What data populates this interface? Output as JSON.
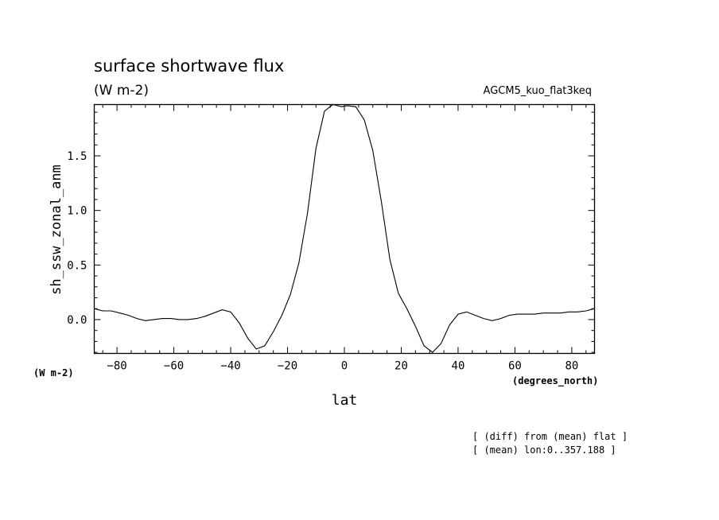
{
  "chart_data": {
    "type": "line",
    "title": "surface shortwave flux",
    "subtitle": "(W m-2)",
    "run_label": "AGCM5_kuo_flat3keq",
    "ylabel": "sh_ssw_zonal_anm",
    "xlabel": "lat",
    "y_unit_label": "(W m-2)",
    "x_unit_label": "(degrees_north)",
    "xlim": [
      -88,
      88
    ],
    "ylim": [
      -0.31,
      1.97
    ],
    "xticks": [
      -80,
      -60,
      -40,
      -20,
      0,
      20,
      40,
      60,
      80
    ],
    "xtick_labels": [
      "−80",
      "−60",
      "−40",
      "−20",
      "0",
      "20",
      "40",
      "60",
      "80"
    ],
    "yticks": [
      0.0,
      0.5,
      1.0,
      1.5
    ],
    "ytick_labels": [
      "0.0",
      "0.5",
      "1.0",
      "1.5"
    ],
    "grid": false,
    "series": [
      {
        "x": [
          -88,
          -85,
          -82,
          -79,
          -76,
          -73,
          -70,
          -67,
          -64,
          -61,
          -58,
          -55,
          -52,
          -49,
          -46,
          -43,
          -40,
          -37,
          -34,
          -31,
          -28,
          -25,
          -22,
          -19,
          -16,
          -13,
          -10,
          -7,
          -4,
          -1,
          1,
          4,
          7,
          10,
          13,
          16,
          19,
          22,
          25,
          28,
          31,
          34,
          37,
          40,
          43,
          46,
          49,
          52,
          55,
          58,
          61,
          64,
          67,
          70,
          73,
          76,
          79,
          82,
          85,
          88
        ],
        "y": [
          0.1,
          0.08,
          0.08,
          0.06,
          0.04,
          0.01,
          -0.01,
          0.0,
          0.01,
          0.01,
          0.0,
          0.0,
          0.01,
          0.03,
          0.06,
          0.09,
          0.07,
          -0.03,
          -0.17,
          -0.27,
          -0.24,
          -0.11,
          0.04,
          0.23,
          0.52,
          0.97,
          1.57,
          1.91,
          1.97,
          1.95,
          1.96,
          1.95,
          1.83,
          1.55,
          1.08,
          0.55,
          0.24,
          0.1,
          -0.06,
          -0.24,
          -0.3,
          -0.22,
          -0.05,
          0.05,
          0.07,
          0.04,
          0.01,
          -0.01,
          0.01,
          0.04,
          0.05,
          0.05,
          0.05,
          0.06,
          0.06,
          0.06,
          0.07,
          0.07,
          0.08,
          0.1
        ]
      }
    ]
  },
  "notes": {
    "line1": "[ (diff) from (mean) flat ]",
    "line2": "[ (mean) lon:0..357.188 ]"
  }
}
